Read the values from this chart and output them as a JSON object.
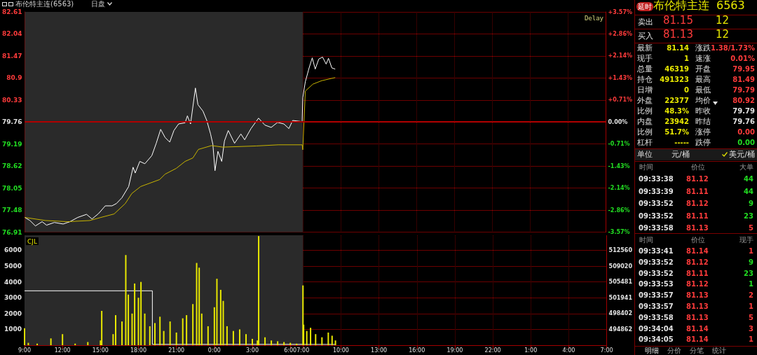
{
  "chart_data": [
    {
      "type": "line",
      "title": "布伦特主连(6563)",
      "subtitle": "日盘",
      "annotations": [
        "Delay"
      ],
      "xlim": [
        "--01-01T09:00",
        "--01-03T07:00"
      ],
      "xticks": [
        {
          "value": "--01-01T09:00",
          "label": null
        },
        {
          "value": "--01-01T12:00",
          "label": null
        },
        {
          "value": "--01-01T15:00",
          "label": null
        },
        {
          "value": "--01-01T18:00",
          "label": null
        },
        {
          "value": "--01-01T21:00",
          "label": null
        },
        {
          "value": "--01-02T00:00",
          "label": null
        },
        {
          "value": "--01-02T03:00",
          "label": null
        },
        {
          "value": "--01-02T06:00",
          "label": null
        },
        {
          "value": "--01-02T07:00",
          "label": null
        },
        {
          "value": "--01-02T10:00",
          "label": null
        },
        {
          "value": "--01-02T13:00",
          "label": null
        },
        {
          "value": "--01-02T16:00",
          "label": null
        },
        {
          "value": "--01-02T19:00",
          "label": null
        },
        {
          "value": "--01-02T22:00",
          "label": null
        },
        {
          "value": "--01-03T01:00",
          "label": null
        },
        {
          "value": "--01-03T04:00",
          "label": null
        },
        {
          "value": "--01-03T07:00",
          "label": null
        }
      ],
      "ylim": [
        76.91,
        82.61
      ],
      "yticks": [
        76.91,
        77.48,
        78.05,
        78.62,
        79.19,
        79.76,
        80.33,
        80.9,
        81.47,
        82.04,
        82.61
      ],
      "y2lim": [
        -3.57,
        3.57
      ],
      "y2ticks": [
        {
          "value": -3.57,
          "label": "-3.57%"
        },
        {
          "value": -2.86,
          "label": "-2.86%"
        },
        {
          "value": -2.14,
          "label": "-2.14%"
        },
        {
          "value": -1.43,
          "label": "-1.43%"
        },
        {
          "value": -0.71,
          "label": "-0.71%"
        },
        {
          "value": 0,
          "label": "0.00%"
        },
        {
          "value": 0.71,
          "label": "+0.71%"
        },
        {
          "value": 1.43,
          "label": "+1.43%"
        },
        {
          "value": 2.14,
          "label": "+2.14%"
        },
        {
          "value": 2.86,
          "label": "+2.86%"
        },
        {
          "value": 3.57,
          "label": "+3.57%"
        }
      ],
      "tick_labels": "y",
      "grid": true,
      "marker": "none",
      "ref_lines": [
        {
          "axis": "y",
          "value": 79.76,
          "color": "#b00000"
        }
      ],
      "bands": [
        {
          "axis": "x",
          "from": "--01-01T09:00",
          "to": "--01-02T07:00",
          "color": "#2a2a2a"
        }
      ],
      "series": [
        {
          "color": "#ffffff",
          "x": [
            "--01-01T09:00",
            "--01-01T09:24",
            "--01-01T09:50",
            "--01-01T10:22",
            "--01-01T10:43",
            "--01-01T11:20",
            "--01-01T12:02",
            "--01-01T12:34",
            "--01-01T13:11",
            "--01-01T13:53",
            "--01-01T14:19",
            "--01-01T14:50",
            "--01-01T15:22",
            "--01-01T15:54",
            "--01-01T16:15",
            "--01-01T16:41",
            "--01-01T17:13",
            "--01-01T17:34",
            "--01-01T17:44",
            "--01-01T18:06",
            "--01-01T18:30",
            "--01-01T19:03",
            "--01-01T19:24",
            "--01-01T19:45",
            "--01-01T20:06",
            "--01-01T20:28",
            "--01-01T20:48",
            "--01-01T21:10",
            "--01-01T21:41",
            "--01-01T21:52",
            "--01-01T22:07",
            "--01-01T22:30",
            "--01-01T22:42",
            "--01-01T23:06",
            "--01-01T23:24",
            "--01-01T23:42",
            "--01-01T23:53",
            "--01-02T00:03",
            "--01-02T00:17",
            "--01-02T00:35",
            "--01-02T00:48",
            "--01-02T01:06",
            "--01-02T01:36",
            "--01-02T02:06",
            "--01-02T02:24",
            "--01-02T02:54",
            "--01-02T03:30",
            "--01-02T04:00",
            "--01-02T04:30",
            "--01-02T05:00",
            "--01-02T05:30",
            "--01-02T05:54",
            "--01-02T06:12",
            "--01-02T06:57",
            "--01-02T07:00",
            "--01-02T07:12",
            "--01-02T07:30",
            "--01-02T07:45",
            "--01-02T07:59",
            "--01-02T08:16",
            "--01-02T08:34",
            "--01-02T08:51",
            "--01-02T09:02",
            "--01-02T09:18",
            "--01-02T09:34"
          ],
          "values": [
            77.29,
            77.21,
            77.07,
            77.18,
            77.09,
            77.16,
            77.12,
            77.18,
            77.29,
            77.37,
            77.25,
            77.39,
            77.59,
            77.59,
            77.65,
            77.8,
            78.09,
            78.59,
            78.44,
            78.74,
            78.68,
            78.89,
            79.21,
            79.57,
            79.36,
            79.24,
            79.54,
            79.71,
            79.74,
            79.92,
            79.71,
            80.64,
            80.21,
            80.04,
            79.8,
            79.45,
            79.18,
            78.5,
            79.0,
            78.74,
            79.27,
            79.54,
            79.21,
            79.45,
            79.3,
            79.59,
            79.86,
            79.68,
            79.62,
            79.75,
            79.71,
            79.59,
            79.8,
            79.77,
            80.39,
            80.8,
            81.16,
            81.42,
            81.13,
            81.39,
            81.44,
            81.26,
            81.41,
            81.16,
            81.13
          ]
        },
        {
          "color": "#c8b400",
          "x": [
            "--01-01T09:00",
            "--01-01T10:38",
            "--01-01T12:23",
            "--01-01T14:08",
            "--01-01T15:01",
            "--01-01T16:04",
            "--01-01T16:57",
            "--01-01T17:28",
            "--01-01T18:10",
            "--01-01T19:40",
            "--01-01T20:06",
            "--01-01T20:59",
            "--01-01T21:41",
            "--01-01T22:18",
            "--01-01T22:44",
            "--01-01T23:47",
            "--01-02T00:40",
            "--01-02T03:18",
            "--01-02T05:04",
            "--01-02T06:57",
            "--01-02T07:00",
            "--01-02T07:12",
            "--01-02T07:48",
            "--01-02T08:30",
            "--01-02T09:34"
          ],
          "values": [
            77.29,
            77.21,
            77.18,
            77.21,
            77.29,
            77.38,
            77.65,
            77.91,
            78.09,
            78.27,
            78.41,
            78.56,
            78.74,
            78.83,
            79.05,
            79.15,
            79.11,
            79.14,
            79.17,
            79.17,
            79.04,
            80.56,
            80.74,
            80.83,
            80.91
          ]
        }
      ]
    },
    {
      "type": "bar",
      "annotations": [
        "CJL"
      ],
      "xlim": [
        "--01-01T09:00",
        "--01-03T07:00"
      ],
      "xticks": [
        {
          "value": "--01-01T09:00",
          "label": "9:00"
        },
        {
          "value": "--01-01T12:00",
          "label": "12:00"
        },
        {
          "value": "--01-01T15:00",
          "label": "15:00"
        },
        {
          "value": "--01-01T18:00",
          "label": "18:00"
        },
        {
          "value": "--01-01T21:00",
          "label": "21:00"
        },
        {
          "value": "--01-02T00:00",
          "label": "0:00"
        },
        {
          "value": "--01-02T03:00",
          "label": "3:00"
        },
        {
          "value": "--01-02T06:00",
          "label": "6:00"
        },
        {
          "value": "--01-02T07:00",
          "label": "7:00"
        },
        {
          "value": "--01-02T10:00",
          "label": "10:00"
        },
        {
          "value": "--01-02T13:00",
          "label": "13:00"
        },
        {
          "value": "--01-02T16:00",
          "label": "16:00"
        },
        {
          "value": "--01-02T19:00",
          "label": "19:00"
        },
        {
          "value": "--01-02T22:00",
          "label": "22:00"
        },
        {
          "value": "--01-03T01:00",
          "label": "1:00"
        },
        {
          "value": "--01-03T04:00",
          "label": "4:00"
        },
        {
          "value": "--01-03T07:00",
          "label": "7:00"
        }
      ],
      "ylim": [
        0,
        6950
      ],
      "yticks": [
        1000,
        2000,
        3000,
        4000,
        5000,
        6000
      ],
      "y2lim": [
        491322,
        515925
      ],
      "y2ticks": [
        494862,
        498402,
        501941,
        505481,
        509020,
        512560
      ],
      "grid": true,
      "bands": [
        {
          "axis": "x",
          "from": "--01-01T09:00",
          "to": "--01-02T07:00",
          "color": "#2a2a2a"
        }
      ],
      "series": [
        {
          "color": "#e8e800",
          "x": [
            "--01-01T09:00",
            "--01-01T09:18",
            "--01-01T10:00",
            "--01-01T11:05",
            "--01-01T12:00",
            "--01-01T13:00",
            "--01-01T14:00",
            "--01-01T15:00",
            "--01-01T15:06",
            "--01-01T16:00",
            "--01-01T16:12",
            "--01-01T16:42",
            "--01-01T17:00",
            "--01-01T17:12",
            "--01-01T17:30",
            "--01-01T17:42",
            "--01-01T18:00",
            "--01-01T18:12",
            "--01-01T18:30",
            "--01-01T18:54",
            "--01-01T19:18",
            "--01-01T19:42",
            "--01-01T20:00",
            "--01-01T20:30",
            "--01-01T21:00",
            "--01-01T21:30",
            "--01-01T21:48",
            "--01-01T22:18",
            "--01-01T22:36",
            "--01-01T22:48",
            "--01-01T23:00",
            "--01-01T23:30",
            "--01-02T00:00",
            "--01-02T00:12",
            "--01-02T00:30",
            "--01-02T00:42",
            "--01-02T01:00",
            "--01-02T01:30",
            "--01-02T02:00",
            "--01-02T02:30",
            "--01-02T03:00",
            "--01-02T03:24",
            "--01-02T03:30",
            "--01-02T04:00",
            "--01-02T04:30",
            "--01-02T05:00",
            "--01-02T05:30",
            "--01-02T06:00",
            "--01-02T06:30",
            "--01-02T07:00",
            "--01-02T07:03",
            "--01-02T07:18",
            "--01-02T07:36",
            "--01-02T08:00",
            "--01-02T08:30",
            "--01-02T09:00",
            "--01-02T09:18",
            "--01-02T09:34"
          ],
          "values": [
            1070,
            150,
            100,
            430,
            700,
            100,
            200,
            300,
            2170,
            700,
            1900,
            1500,
            5700,
            3200,
            2000,
            3900,
            3000,
            4000,
            2000,
            1200,
            1400,
            1800,
            900,
            1500,
            800,
            1700,
            1900,
            2600,
            5200,
            4900,
            2000,
            1200,
            2400,
            4200,
            3500,
            2800,
            1200,
            900,
            1000,
            700,
            400,
            300,
            6900,
            500,
            300,
            250,
            200,
            150,
            100,
            3780,
            1300,
            900,
            1100,
            700,
            500,
            800,
            600,
            300
          ]
        },
        {
          "type": "line",
          "axis": "y2",
          "color": "#ffffff",
          "x": [
            "--01-01T09:00",
            "--01-01T19:06",
            "--01-01T19:06",
            "--01-02T09:34"
          ],
          "values": [
            503500,
            503500,
            491500,
            491500
          ]
        }
      ]
    },
    {
      "type": "other",
      "annotations": [
        "延时",
        "布伦特主连",
        "6563",
        "卖出",
        "81.15",
        "12",
        "买入",
        "81.13",
        "12",
        "最新",
        "81.14",
        "涨跌",
        "1.38/1.73%",
        "现手",
        "1",
        "速涨",
        "0.01%",
        "总量",
        "46319",
        "开盘",
        "79.95",
        "持仓",
        "491323",
        "最高",
        "81.49",
        "日增",
        "0",
        "最低",
        "79.79",
        "外盘",
        "22377",
        "均价",
        "80.92",
        "比例",
        "48.3%",
        "昨收",
        "79.79",
        "内盘",
        "23942",
        "昨结",
        "79.76",
        "比例",
        "51.7%",
        "涨停",
        "0.00",
        "杠杆",
        "-----",
        "跌停",
        "0.00",
        "单位",
        "元/桶",
        "美元/桶",
        "时间",
        "价位",
        "大单",
        "09:33:38",
        "81.12",
        "44",
        "09:33:39",
        "81.11",
        "44",
        "09:33:52",
        "81.12",
        "9",
        "09:33:52",
        "81.11",
        "23",
        "09:33:58",
        "81.13",
        "5",
        "时间",
        "价位",
        "现手",
        "09:33:41",
        "81.14",
        "1",
        "09:33:52",
        "81.12",
        "9",
        "09:33:52",
        "81.11",
        "23",
        "09:33:53",
        "81.12",
        "1",
        "09:33:57",
        "81.13",
        "2",
        "09:33:57",
        "81.13",
        "1",
        "09:33:58",
        "81.13",
        "5",
        "09:34:04",
        "81.14",
        "3",
        "09:34:05",
        "81.14",
        "1",
        "明细",
        "分价",
        "分笔",
        "统计"
      ]
    }
  ]
}
